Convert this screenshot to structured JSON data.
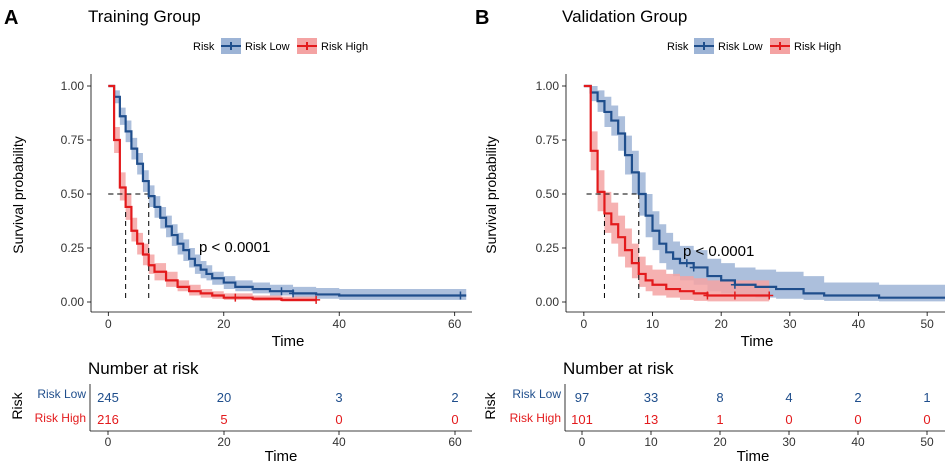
{
  "panels": [
    {
      "letter": "A",
      "title": "Training Group",
      "legend": {
        "title": "Risk",
        "low": "Risk Low",
        "high": "Risk High"
      },
      "p_value": "p < 0.0001",
      "risk_table": {
        "title": "Number at risk",
        "row_labels": [
          "Risk Low",
          "Risk High"
        ],
        "y_axis_label": "Risk",
        "low_counts": [
          "245",
          "20",
          "3",
          "2"
        ],
        "high_counts": [
          "216",
          "5",
          "0",
          "0"
        ],
        "x_ticks": [
          "0",
          "20",
          "40",
          "60"
        ],
        "x_label": "Time"
      }
    },
    {
      "letter": "B",
      "title": "Validation Group",
      "legend": {
        "title": "Risk",
        "low": "Risk Low",
        "high": "Risk High"
      },
      "p_value": "p < 0.0001",
      "risk_table": {
        "title": "Number at risk",
        "row_labels": [
          "Risk Low",
          "Risk High"
        ],
        "y_axis_label": "Risk",
        "low_counts": [
          "97",
          "33",
          "8",
          "4",
          "2",
          "1"
        ],
        "high_counts": [
          "101",
          "13",
          "1",
          "0",
          "0",
          "0"
        ],
        "x_ticks": [
          "0",
          "10",
          "20",
          "30",
          "40",
          "50"
        ],
        "x_label": "Time"
      }
    }
  ],
  "colors": {
    "low": "#1f4e8c",
    "low_band": "#9db4d6",
    "high": "#e31a1c",
    "high_band": "#f4a3a3"
  },
  "chart_data": [
    {
      "type": "line",
      "title": "Training Group",
      "xlabel": "Time",
      "ylabel": "Survival probability",
      "xlim": [
        -3,
        63
      ],
      "ylim": [
        0,
        1
      ],
      "x_ticks": [
        0,
        20,
        40,
        60
      ],
      "y_ticks": [
        0,
        0.25,
        0.5,
        0.75,
        1
      ],
      "y_tick_labels": [
        "0.00",
        "0.25",
        "0.50",
        "0.75",
        "1.00"
      ],
      "median_lines": [
        {
          "x": 3,
          "y": 0.5
        },
        {
          "x": 7,
          "y": 0.5
        }
      ],
      "series": [
        {
          "name": "Risk Low",
          "x": [
            0,
            1,
            2,
            3,
            4,
            5,
            6,
            7,
            8,
            9,
            10,
            11,
            12,
            13,
            14,
            15,
            16,
            17,
            18,
            20,
            22,
            25,
            28,
            32,
            36,
            40,
            49,
            62
          ],
          "y": [
            1,
            0.95,
            0.86,
            0.79,
            0.71,
            0.64,
            0.56,
            0.49,
            0.44,
            0.39,
            0.35,
            0.31,
            0.27,
            0.24,
            0.2,
            0.17,
            0.15,
            0.13,
            0.11,
            0.09,
            0.07,
            0.06,
            0.05,
            0.04,
            0.035,
            0.03,
            0.03,
            0.03
          ],
          "lower": [
            1,
            0.92,
            0.82,
            0.74,
            0.66,
            0.59,
            0.51,
            0.44,
            0.39,
            0.34,
            0.3,
            0.26,
            0.22,
            0.19,
            0.16,
            0.13,
            0.11,
            0.1,
            0.08,
            0.06,
            0.05,
            0.04,
            0.03,
            0.02,
            0.015,
            0.01,
            0.01,
            0.01
          ],
          "upper": [
            1,
            0.98,
            0.9,
            0.84,
            0.76,
            0.69,
            0.61,
            0.54,
            0.49,
            0.44,
            0.4,
            0.36,
            0.32,
            0.29,
            0.25,
            0.22,
            0.19,
            0.17,
            0.14,
            0.12,
            0.1,
            0.09,
            0.08,
            0.07,
            0.065,
            0.06,
            0.06,
            0.06
          ],
          "censor_x": [
            30,
            32,
            61
          ]
        },
        {
          "name": "Risk High",
          "x": [
            0,
            1,
            2,
            3,
            4,
            5,
            6,
            7,
            8,
            10,
            12,
            14,
            16,
            18,
            20,
            25,
            30,
            36
          ],
          "y": [
            1,
            0.75,
            0.53,
            0.44,
            0.33,
            0.27,
            0.22,
            0.17,
            0.14,
            0.1,
            0.07,
            0.05,
            0.04,
            0.03,
            0.02,
            0.015,
            0.01,
            0.01
          ],
          "lower": [
            1,
            0.69,
            0.47,
            0.38,
            0.28,
            0.22,
            0.17,
            0.13,
            0.1,
            0.07,
            0.05,
            0.03,
            0.02,
            0.015,
            0.01,
            0.005,
            0.002,
            0.002
          ],
          "upper": [
            1,
            0.81,
            0.6,
            0.5,
            0.39,
            0.32,
            0.27,
            0.22,
            0.18,
            0.14,
            0.1,
            0.08,
            0.06,
            0.05,
            0.04,
            0.03,
            0.025,
            0.025
          ],
          "censor_x": [
            22,
            36
          ]
        }
      ]
    },
    {
      "type": "line",
      "title": "Validation Group",
      "xlabel": "Time",
      "ylabel": "Survival probability",
      "xlim": [
        -2.6,
        52.6
      ],
      "ylim": [
        0,
        1
      ],
      "x_ticks": [
        0,
        10,
        20,
        30,
        40,
        50
      ],
      "y_ticks": [
        0,
        0.25,
        0.5,
        0.75,
        1
      ],
      "y_tick_labels": [
        "0.00",
        "0.25",
        "0.50",
        "0.75",
        "1.00"
      ],
      "median_lines": [
        {
          "x": 3,
          "y": 0.5
        },
        {
          "x": 8,
          "y": 0.5
        }
      ],
      "series": [
        {
          "name": "Risk Low",
          "x": [
            0,
            1,
            2,
            3,
            4,
            5,
            6,
            7,
            8,
            9,
            10,
            11,
            12,
            13,
            14,
            16,
            18,
            20,
            22,
            25,
            28,
            32,
            35,
            43,
            52.6
          ],
          "y": [
            1,
            0.97,
            0.93,
            0.88,
            0.84,
            0.78,
            0.68,
            0.6,
            0.5,
            0.4,
            0.33,
            0.27,
            0.23,
            0.2,
            0.18,
            0.16,
            0.12,
            0.1,
            0.08,
            0.07,
            0.06,
            0.04,
            0.03,
            0.02,
            0.02
          ],
          "lower": [
            1,
            0.93,
            0.88,
            0.81,
            0.77,
            0.7,
            0.59,
            0.5,
            0.4,
            0.3,
            0.24,
            0.18,
            0.15,
            0.12,
            0.1,
            0.08,
            0.05,
            0.04,
            0.03,
            0.02,
            0.015,
            0.01,
            0.005,
            0.003,
            0.003
          ],
          "upper": [
            1,
            1,
            0.98,
            0.95,
            0.91,
            0.86,
            0.77,
            0.7,
            0.6,
            0.5,
            0.42,
            0.36,
            0.32,
            0.28,
            0.26,
            0.24,
            0.2,
            0.18,
            0.16,
            0.15,
            0.14,
            0.12,
            0.09,
            0.08,
            0.08
          ],
          "censor_x": [
            15,
            16,
            22
          ]
        },
        {
          "name": "Risk High",
          "x": [
            0,
            1,
            2,
            3,
            4,
            5,
            6,
            7,
            8,
            9,
            10,
            12,
            14,
            16,
            18,
            20,
            22,
            27
          ],
          "y": [
            1,
            0.7,
            0.51,
            0.41,
            0.36,
            0.3,
            0.24,
            0.18,
            0.13,
            0.1,
            0.08,
            0.06,
            0.05,
            0.04,
            0.03,
            0.03,
            0.03,
            0.03
          ],
          "lower": [
            1,
            0.61,
            0.42,
            0.32,
            0.27,
            0.21,
            0.16,
            0.11,
            0.07,
            0.05,
            0.03,
            0.02,
            0.01,
            0.005,
            0.003,
            0.003,
            0.003,
            0.003
          ],
          "upper": [
            1,
            0.79,
            0.61,
            0.51,
            0.46,
            0.4,
            0.34,
            0.27,
            0.21,
            0.17,
            0.15,
            0.13,
            0.12,
            0.11,
            0.1,
            0.1,
            0.1,
            0.1
          ],
          "censor_x": [
            18,
            22,
            27
          ]
        }
      ]
    }
  ]
}
